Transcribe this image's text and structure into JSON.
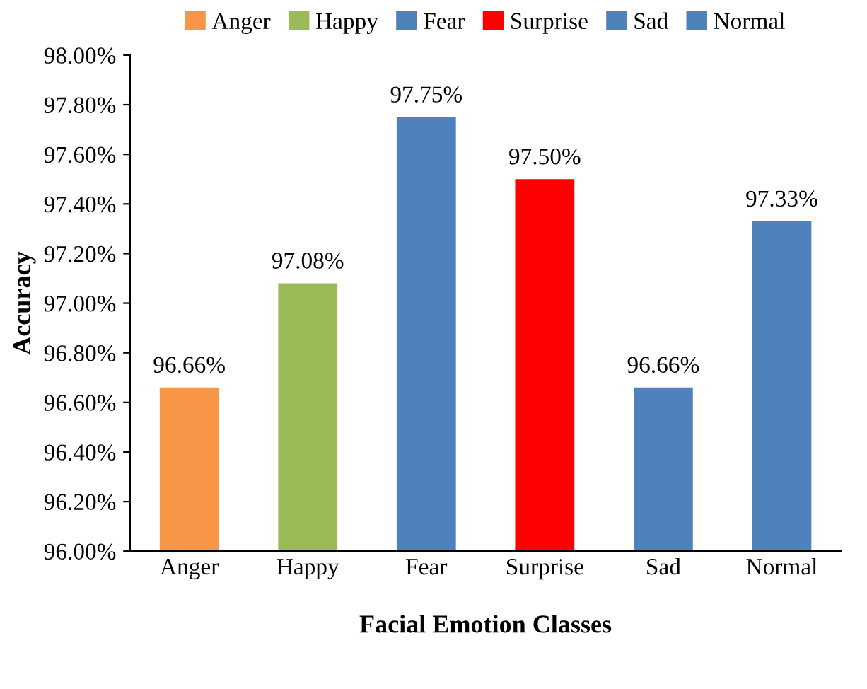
{
  "chart_data": {
    "type": "bar",
    "xlabel": "Facial Emotion Classes",
    "ylabel": "Accuracy",
    "categories": [
      "Anger",
      "Happy",
      "Fear",
      "Surprise",
      "Sad",
      "Normal"
    ],
    "series": [
      {
        "name": "Anger",
        "color": "#f79646",
        "values": [
          96.66,
          null,
          null,
          null,
          null,
          null
        ],
        "value_labels": [
          "96.66%",
          null,
          null,
          null,
          null,
          null
        ]
      },
      {
        "name": "Happy",
        "color": "#9bbb59",
        "values": [
          null,
          97.08,
          null,
          null,
          null,
          null
        ],
        "value_labels": [
          null,
          "97.08%",
          null,
          null,
          null,
          null
        ]
      },
      {
        "name": "Fear",
        "color": "#4f81bd",
        "values": [
          null,
          null,
          97.75,
          null,
          null,
          null
        ],
        "value_labels": [
          null,
          null,
          "97.75%",
          null,
          null,
          null
        ]
      },
      {
        "name": "Surprise",
        "color": "#ff0000",
        "values": [
          null,
          null,
          null,
          97.5,
          null,
          null
        ],
        "value_labels": [
          null,
          null,
          null,
          "97.50%",
          null,
          null
        ]
      },
      {
        "name": "Sad",
        "color": "#4f81bd",
        "values": [
          null,
          null,
          null,
          null,
          96.66,
          null
        ],
        "value_labels": [
          null,
          null,
          null,
          null,
          "96.66%",
          null
        ]
      },
      {
        "name": "Normal",
        "color": "#4f81bd",
        "values": [
          null,
          null,
          null,
          null,
          null,
          97.33
        ],
        "value_labels": [
          null,
          null,
          null,
          null,
          null,
          "97.33%"
        ]
      }
    ],
    "ylim": [
      96.0,
      98.0
    ],
    "yticks": [
      {
        "value": 96.0,
        "label": "96.00%"
      },
      {
        "value": 96.2,
        "label": "96.20%"
      },
      {
        "value": 96.4,
        "label": "96.40%"
      },
      {
        "value": 96.6,
        "label": "96.60%"
      },
      {
        "value": 96.8,
        "label": "96.80%"
      },
      {
        "value": 97.0,
        "label": "97.00%"
      },
      {
        "value": 97.2,
        "label": "97.20%"
      },
      {
        "value": 97.4,
        "label": "97.40%"
      },
      {
        "value": 97.6,
        "label": "97.60%"
      },
      {
        "value": 97.8,
        "label": "97.80%"
      },
      {
        "value": 98.0,
        "label": "98.00%"
      }
    ],
    "grid": false,
    "legend": "top"
  }
}
